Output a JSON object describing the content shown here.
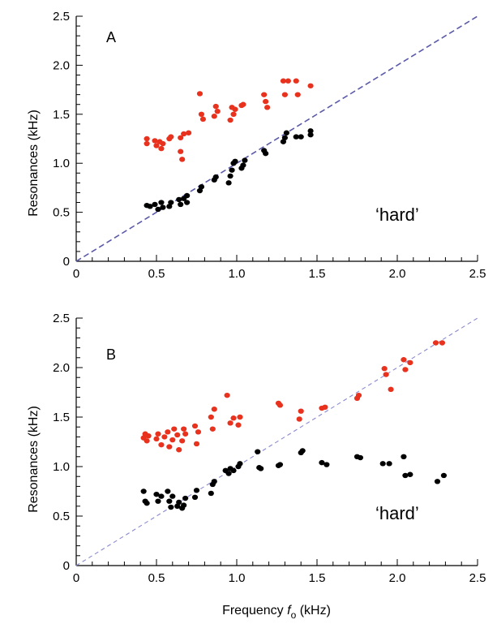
{
  "chart_data": [
    {
      "type": "scatter",
      "panel_label": "A",
      "annotation": "‘hard’",
      "title": "",
      "xlabel": "",
      "ylabel": "Resonances  (kHz)",
      "xlim": [
        0,
        2.5
      ],
      "ylim": [
        0,
        2.5
      ],
      "x_ticks": [
        "0",
        "0.5",
        "1.0",
        "1.5",
        "2.0",
        "2.5"
      ],
      "y_ticks": [
        "0",
        "0.5",
        "1.0",
        "1.5",
        "2.0",
        "2.5"
      ],
      "grid": false,
      "reference_line": {
        "from": [
          0,
          0
        ],
        "to": [
          2.5,
          2.5
        ],
        "style": "dashed",
        "color": "#5a5aa8"
      },
      "series": [
        {
          "color": "#e8321e",
          "points": [
            [
              0.44,
              1.2
            ],
            [
              0.44,
              1.25
            ],
            [
              0.49,
              1.23
            ],
            [
              0.5,
              1.18
            ],
            [
              0.52,
              1.22
            ],
            [
              0.53,
              1.15
            ],
            [
              0.54,
              1.2
            ],
            [
              0.58,
              1.25
            ],
            [
              0.59,
              1.27
            ],
            [
              0.65,
              1.26
            ],
            [
              0.65,
              1.12
            ],
            [
              0.66,
              1.04
            ],
            [
              0.67,
              1.3
            ],
            [
              0.7,
              1.31
            ],
            [
              0.77,
              1.71
            ],
            [
              0.78,
              1.5
            ],
            [
              0.79,
              1.45
            ],
            [
              0.86,
              1.48
            ],
            [
              0.87,
              1.58
            ],
            [
              0.88,
              1.53
            ],
            [
              0.96,
              1.44
            ],
            [
              0.97,
              1.57
            ],
            [
              0.98,
              1.5
            ],
            [
              0.99,
              1.55
            ],
            [
              1.03,
              1.59
            ],
            [
              1.04,
              1.6
            ],
            [
              1.17,
              1.7
            ],
            [
              1.18,
              1.63
            ],
            [
              1.19,
              1.57
            ],
            [
              1.29,
              1.84
            ],
            [
              1.3,
              1.7
            ],
            [
              1.32,
              1.84
            ],
            [
              1.37,
              1.84
            ],
            [
              1.38,
              1.7
            ],
            [
              1.46,
              1.79
            ]
          ]
        },
        {
          "color": "#000000",
          "points": [
            [
              0.44,
              0.57
            ],
            [
              0.46,
              0.56
            ],
            [
              0.49,
              0.58
            ],
            [
              0.51,
              0.53
            ],
            [
              0.53,
              0.6
            ],
            [
              0.54,
              0.55
            ],
            [
              0.58,
              0.56
            ],
            [
              0.59,
              0.6
            ],
            [
              0.64,
              0.63
            ],
            [
              0.65,
              0.58
            ],
            [
              0.67,
              0.64
            ],
            [
              0.69,
              0.6
            ],
            [
              0.69,
              0.67
            ],
            [
              0.77,
              0.72
            ],
            [
              0.78,
              0.76
            ],
            [
              0.86,
              0.83
            ],
            [
              0.87,
              0.86
            ],
            [
              0.95,
              0.8
            ],
            [
              0.96,
              0.87
            ],
            [
              0.97,
              0.93
            ],
            [
              0.98,
              1.0
            ],
            [
              0.99,
              1.02
            ],
            [
              1.03,
              0.95
            ],
            [
              1.04,
              0.98
            ],
            [
              1.05,
              1.03
            ],
            [
              1.17,
              1.13
            ],
            [
              1.18,
              1.1
            ],
            [
              1.29,
              1.22
            ],
            [
              1.3,
              1.26
            ],
            [
              1.31,
              1.31
            ],
            [
              1.37,
              1.27
            ],
            [
              1.4,
              1.27
            ],
            [
              1.46,
              1.29
            ],
            [
              1.46,
              1.33
            ]
          ]
        }
      ]
    },
    {
      "type": "scatter",
      "panel_label": "B",
      "annotation": "‘hard’",
      "title": "",
      "xlabel": "Frequency",
      "xlabel_italic": "f",
      "xlabel_sub": "o",
      "xlabel_unit": "(kHz)",
      "ylabel": "Resonances  (kHz)",
      "xlim": [
        0,
        2.5
      ],
      "ylim": [
        0,
        2.5
      ],
      "x_ticks": [
        "0",
        "0.5",
        "1.0",
        "1.5",
        "2.0",
        "2.5"
      ],
      "y_ticks": [
        "0",
        "0.5",
        "1.0",
        "1.5",
        "2.0",
        "2.5"
      ],
      "grid": false,
      "reference_line": {
        "from": [
          0,
          0
        ],
        "to": [
          2.5,
          2.5
        ],
        "style": "dashed",
        "color": "#8a8ad0"
      },
      "series": [
        {
          "color": "#e8321e",
          "points": [
            [
              0.42,
              1.29
            ],
            [
              0.43,
              1.33
            ],
            [
              0.44,
              1.26
            ],
            [
              0.45,
              1.31
            ],
            [
              0.5,
              1.28
            ],
            [
              0.51,
              1.33
            ],
            [
              0.53,
              1.22
            ],
            [
              0.55,
              1.3
            ],
            [
              0.57,
              1.35
            ],
            [
              0.58,
              1.2
            ],
            [
              0.6,
              1.27
            ],
            [
              0.61,
              1.38
            ],
            [
              0.63,
              1.32
            ],
            [
              0.64,
              1.17
            ],
            [
              0.66,
              1.26
            ],
            [
              0.67,
              1.38
            ],
            [
              0.68,
              1.33
            ],
            [
              0.74,
              1.41
            ],
            [
              0.75,
              1.23
            ],
            [
              0.76,
              1.35
            ],
            [
              0.84,
              1.5
            ],
            [
              0.85,
              1.38
            ],
            [
              0.86,
              1.58
            ],
            [
              0.94,
              1.72
            ],
            [
              0.96,
              1.44
            ],
            [
              0.98,
              1.49
            ],
            [
              1.01,
              1.42
            ],
            [
              1.02,
              1.5
            ],
            [
              1.26,
              1.64
            ],
            [
              1.27,
              1.62
            ],
            [
              1.39,
              1.48
            ],
            [
              1.4,
              1.56
            ],
            [
              1.53,
              1.59
            ],
            [
              1.55,
              1.6
            ],
            [
              1.75,
              1.69
            ],
            [
              1.76,
              1.72
            ],
            [
              1.92,
              1.99
            ],
            [
              1.93,
              1.93
            ],
            [
              1.96,
              1.78
            ],
            [
              2.04,
              2.08
            ],
            [
              2.05,
              1.98
            ],
            [
              2.08,
              2.05
            ],
            [
              2.24,
              2.25
            ],
            [
              2.28,
              2.25
            ]
          ]
        },
        {
          "color": "#000000",
          "points": [
            [
              0.42,
              0.75
            ],
            [
              0.43,
              0.65
            ],
            [
              0.44,
              0.63
            ],
            [
              0.5,
              0.72
            ],
            [
              0.51,
              0.65
            ],
            [
              0.53,
              0.7
            ],
            [
              0.57,
              0.75
            ],
            [
              0.58,
              0.65
            ],
            [
              0.59,
              0.59
            ],
            [
              0.6,
              0.7
            ],
            [
              0.63,
              0.6
            ],
            [
              0.64,
              0.64
            ],
            [
              0.66,
              0.58
            ],
            [
              0.67,
              0.61
            ],
            [
              0.68,
              0.68
            ],
            [
              0.74,
              0.69
            ],
            [
              0.75,
              0.76
            ],
            [
              0.84,
              0.73
            ],
            [
              0.85,
              0.82
            ],
            [
              0.86,
              0.85
            ],
            [
              0.93,
              0.96
            ],
            [
              0.95,
              0.93
            ],
            [
              0.96,
              0.98
            ],
            [
              0.98,
              0.96
            ],
            [
              1.01,
              1.0
            ],
            [
              1.02,
              1.03
            ],
            [
              1.13,
              1.15
            ],
            [
              1.14,
              0.99
            ],
            [
              1.15,
              0.98
            ],
            [
              1.26,
              1.01
            ],
            [
              1.27,
              1.02
            ],
            [
              1.4,
              1.14
            ],
            [
              1.41,
              1.16
            ],
            [
              1.53,
              1.04
            ],
            [
              1.56,
              1.02
            ],
            [
              1.75,
              1.1
            ],
            [
              1.77,
              1.09
            ],
            [
              1.91,
              1.03
            ],
            [
              1.95,
              1.03
            ],
            [
              2.04,
              1.1
            ],
            [
              2.05,
              0.91
            ],
            [
              2.08,
              0.92
            ],
            [
              2.25,
              0.85
            ],
            [
              2.29,
              0.91
            ]
          ]
        }
      ]
    }
  ]
}
